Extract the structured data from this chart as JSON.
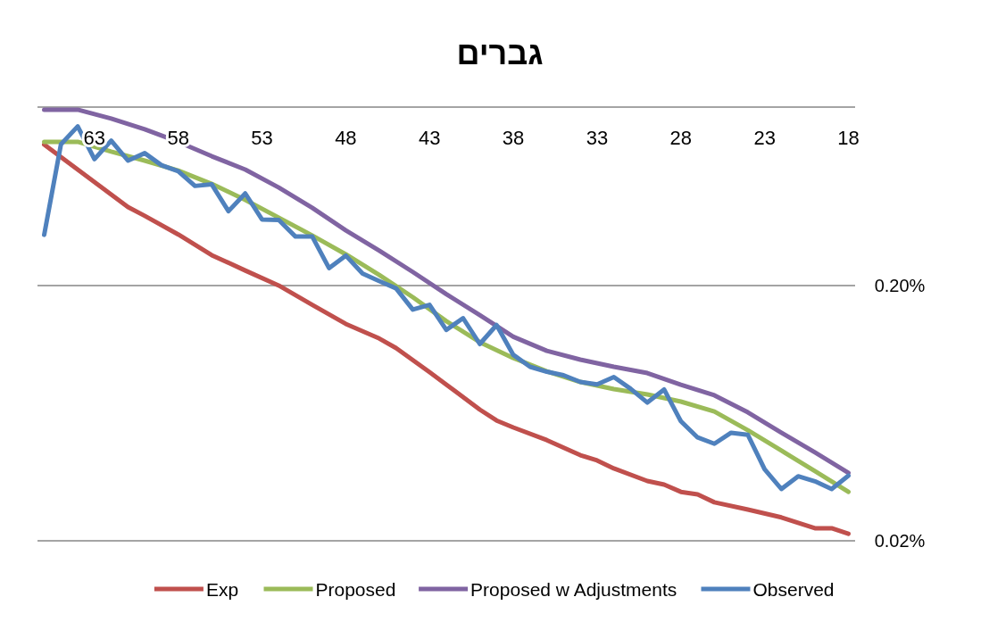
{
  "chart_data": {
    "type": "line",
    "title": "גברים",
    "xlim": [
      66.4,
      17.6
    ],
    "xticks": [
      63,
      58,
      53,
      48,
      43,
      38,
      33,
      28,
      23,
      18
    ],
    "ylim": [
      0.02,
      1
    ],
    "log": true,
    "yticks": [
      {
        "value": 0.02,
        "label": "0.02%"
      },
      {
        "value": 0.2,
        "label": "0.20%"
      },
      {
        "value": 1,
        "label": null
      }
    ],
    "grid": "y",
    "legend": "bottom",
    "line_style": "solid",
    "marker": "none",
    "series": [
      {
        "name": "Exp",
        "color": "#c0504d",
        "x": [
          66,
          64,
          62,
          61,
          60,
          58,
          56,
          54,
          52,
          50,
          48,
          46,
          45,
          43,
          42,
          40,
          39,
          38,
          36,
          34,
          33,
          32,
          30,
          29,
          28,
          27,
          26,
          24,
          22,
          20,
          19,
          18
        ],
        "values": [
          0.713,
          0.569,
          0.454,
          0.406,
          0.375,
          0.317,
          0.263,
          0.229,
          0.2,
          0.168,
          0.1415,
          0.124,
          0.1138,
          0.0916,
          0.0818,
          0.0653,
          0.0592,
          0.0556,
          0.0496,
          0.0433,
          0.0413,
          0.0384,
          0.0343,
          0.0332,
          0.0311,
          0.0304,
          0.0283,
          0.0265,
          0.0247,
          0.0224,
          0.0224,
          0.0213
        ]
      },
      {
        "name": "Proposed",
        "color": "#9bbb59",
        "x": [
          66,
          64,
          62,
          60,
          58,
          56,
          54,
          52,
          50,
          48,
          46,
          44,
          42,
          40,
          38,
          36,
          34,
          32,
          30,
          28,
          26,
          24,
          22,
          20,
          18
        ],
        "values": [
          0.731,
          0.731,
          0.669,
          0.617,
          0.564,
          0.5,
          0.433,
          0.369,
          0.314,
          0.265,
          0.22,
          0.18,
          0.145,
          0.12,
          0.104,
          0.0923,
          0.0838,
          0.0786,
          0.0749,
          0.0702,
          0.0642,
          0.0542,
          0.0451,
          0.0375,
          0.0311
        ]
      },
      {
        "name": "Proposed w Adjustments",
        "color": "#8064a2",
        "x": [
          66,
          64,
          62,
          60,
          58,
          56,
          54,
          52,
          50,
          48,
          46,
          44,
          42,
          40,
          38,
          36,
          34,
          32,
          30,
          28,
          26,
          24,
          22,
          20,
          18
        ],
        "values": [
          0.977,
          0.977,
          0.901,
          0.818,
          0.731,
          0.642,
          0.569,
          0.484,
          0.403,
          0.329,
          0.274,
          0.226,
          0.185,
          0.153,
          0.126,
          0.111,
          0.1025,
          0.0961,
          0.0908,
          0.0818,
          0.0743,
          0.0637,
          0.053,
          0.0444,
          0.0369
        ]
      },
      {
        "name": "Observed",
        "color": "#4f81bd",
        "x": [
          66,
          65,
          64,
          63,
          62,
          61,
          60,
          59,
          58,
          57,
          56,
          55,
          54,
          53,
          52,
          51,
          50,
          49,
          48,
          47,
          46,
          45,
          44,
          43,
          42,
          41,
          40,
          39,
          38,
          37,
          36,
          35,
          34,
          33,
          32,
          31,
          30,
          29,
          28,
          27,
          26,
          25,
          24,
          23,
          22,
          21,
          20,
          19,
          18
        ],
        "values": [
          0.316,
          0.715,
          0.84,
          0.625,
          0.739,
          0.617,
          0.66,
          0.592,
          0.561,
          0.491,
          0.498,
          0.391,
          0.459,
          0.363,
          0.361,
          0.311,
          0.311,
          0.234,
          0.262,
          0.223,
          0.208,
          0.195,
          0.161,
          0.168,
          0.134,
          0.149,
          0.118,
          0.14,
          0.107,
          0.0961,
          0.0919,
          0.089,
          0.0838,
          0.082,
          0.0876,
          0.0788,
          0.0696,
          0.0783,
          0.0588,
          0.0508,
          0.048,
          0.053,
          0.052,
          0.0381,
          0.0319,
          0.0358,
          0.0342,
          0.0319,
          0.036
        ]
      }
    ]
  }
}
